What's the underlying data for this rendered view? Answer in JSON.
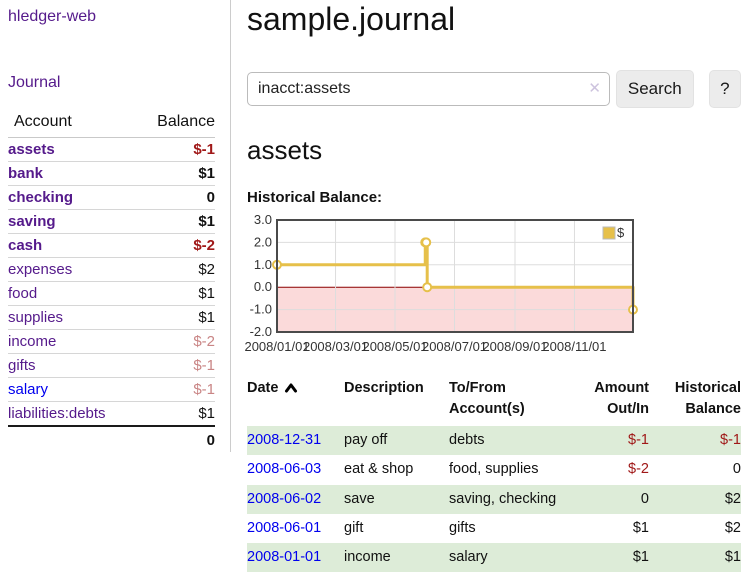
{
  "app": {
    "brand": "hledger-web",
    "nav_journal": "Journal"
  },
  "colors": {
    "link_visited": "#551a8b",
    "link_unvisited": "#0000ee",
    "negative": "#a01818",
    "negative_faded": "#c98585",
    "row_shaded": "#ddecd8",
    "chart_line": "#e6c04a",
    "chart_negative_region": "#fbdada",
    "chart_zero_line": "#8b0000"
  },
  "sidebar": {
    "headers": {
      "account": "Account",
      "balance": "Balance"
    },
    "accounts": [
      {
        "name": "assets",
        "balance": "$-1",
        "level": 1,
        "bold": true,
        "neg": "strong"
      },
      {
        "name": "bank",
        "balance": "$1",
        "level": 2,
        "bold": true,
        "neg": "none"
      },
      {
        "name": "checking",
        "balance": "0",
        "level": 3,
        "bold": true,
        "neg": "none"
      },
      {
        "name": "saving",
        "balance": "$1",
        "level": 3,
        "bold": true,
        "neg": "none"
      },
      {
        "name": "cash",
        "balance": "$-2",
        "level": 2,
        "bold": true,
        "neg": "strong"
      },
      {
        "name": "expenses",
        "balance": "$2",
        "level": 1,
        "bold": false,
        "neg": "none"
      },
      {
        "name": "food",
        "balance": "$1",
        "level": 2,
        "bold": false,
        "neg": "none"
      },
      {
        "name": "supplies",
        "balance": "$1",
        "level": 2,
        "bold": false,
        "neg": "none"
      },
      {
        "name": "income",
        "balance": "$-2",
        "level": 1,
        "bold": false,
        "neg": "faded"
      },
      {
        "name": "gifts",
        "balance": "$-1",
        "level": 2,
        "bold": false,
        "neg": "faded"
      },
      {
        "name": "salary",
        "balance": "$-1",
        "level": 2,
        "bold": false,
        "neg": "faded",
        "link": "unvisited"
      },
      {
        "name": "liabilities:debts",
        "balance": "$1",
        "level": 1,
        "bold": false,
        "neg": "none"
      }
    ],
    "total": "0"
  },
  "header": {
    "title": "sample.journal"
  },
  "search": {
    "value": "inacct:assets",
    "clear_icon": "✕",
    "button_label": "Search",
    "help_label": "?"
  },
  "account_page": {
    "heading": "assets",
    "chart_label": "Historical Balance:"
  },
  "chart_data": {
    "type": "line",
    "step": true,
    "title": "Historical Balance",
    "legend": [
      {
        "label": "$"
      }
    ],
    "legend_position": "top-right",
    "series": [
      {
        "name": "$",
        "points": [
          [
            "2008-01-01",
            1
          ],
          [
            "2008-06-01",
            2
          ],
          [
            "2008-06-02",
            2
          ],
          [
            "2008-06-03",
            0
          ],
          [
            "2008-12-31",
            -1
          ]
        ]
      }
    ],
    "x_range": [
      "2008-01-01",
      "2008-12-31"
    ],
    "ylim": [
      -2,
      3
    ],
    "y_ticks": [
      3,
      2,
      1,
      0,
      -1,
      -2
    ],
    "y_tick_labels": [
      "3.0",
      "2.0",
      "1.0",
      "0.0",
      "-1.0",
      "-2.0"
    ],
    "x_ticks": [
      "2008-01-01",
      "2008-03-01",
      "2008-05-01",
      "2008-07-01",
      "2008-09-01",
      "2008-11-01"
    ],
    "x_tick_labels": [
      "2008/01/01",
      "2008/03/01",
      "2008/05/01",
      "2008/07/01",
      "2008/09/01",
      "2008/11/01"
    ],
    "grid": true,
    "colors": {
      "line": "#e6c04a",
      "marker_fill": "#ffffff",
      "negative_region": "#fbdada",
      "zero_line": "#8b0000",
      "grid": "#dddddd",
      "border": "#4a4a4a",
      "tick_text": "#333333",
      "legend_square_border": "#bbbbbb"
    }
  },
  "register": {
    "columns": {
      "date": "Date",
      "description": "Description",
      "accounts": "To/From Account(s)",
      "amount": "Amount Out/In",
      "balance": "Historical Balance"
    },
    "sort": {
      "column": "date",
      "direction": "asc"
    },
    "rows": [
      {
        "date": "2008-12-31",
        "description": "pay off",
        "accounts": "debts",
        "amount": "$-1",
        "amount_negative": true,
        "balance": "$-1",
        "balance_negative": true,
        "shaded": true
      },
      {
        "date": "2008-06-03",
        "description": "eat & shop",
        "accounts": "food, supplies",
        "amount": "$-2",
        "amount_negative": true,
        "balance": "0",
        "balance_negative": false,
        "shaded": false
      },
      {
        "date": "2008-06-02",
        "description": "save",
        "accounts": "saving, checking",
        "amount": "0",
        "amount_negative": false,
        "balance": "$2",
        "balance_negative": false,
        "shaded": true
      },
      {
        "date": "2008-06-01",
        "description": "gift",
        "accounts": "gifts",
        "amount": "$1",
        "amount_negative": false,
        "balance": "$2",
        "balance_negative": false,
        "shaded": false
      },
      {
        "date": "2008-01-01",
        "description": "income",
        "accounts": "salary",
        "amount": "$1",
        "amount_negative": false,
        "balance": "$1",
        "balance_negative": false,
        "shaded": true
      }
    ]
  }
}
